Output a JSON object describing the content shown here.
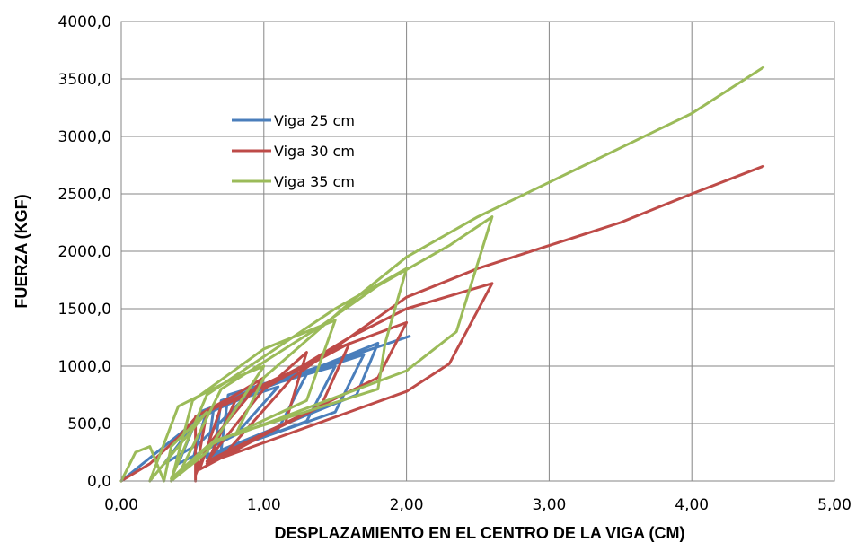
{
  "chart_data": {
    "type": "line",
    "title": "",
    "xlabel": "DESPLAZAMIENTO EN EL CENTRO DE LA VIGA (CM)",
    "ylabel": "FUERZA (KGF)",
    "xlim": [
      0,
      5
    ],
    "ylim": [
      0,
      4000
    ],
    "x_ticks": [
      "0,00",
      "1,00",
      "2,00",
      "3,00",
      "4,00",
      "5,00"
    ],
    "y_ticks": [
      "0,0",
      "500,0",
      "1000,0",
      "1500,0",
      "2000,0",
      "2500,0",
      "3000,0",
      "3500,0",
      "4000,0"
    ],
    "grid": true,
    "legend_position": "upper-left inside plot",
    "series": [
      {
        "name": "Viga 25 cm",
        "color": "#4a7ebb",
        "points": [
          [
            0,
            0
          ],
          [
            0.1,
            100
          ],
          [
            0.3,
            300
          ],
          [
            0.5,
            500
          ],
          [
            0.7,
            650
          ],
          [
            0.9,
            770
          ],
          [
            0.55,
            330
          ],
          [
            0.3,
            150
          ],
          [
            0.55,
            560
          ],
          [
            0.85,
            720
          ],
          [
            1.1,
            820
          ],
          [
            0.8,
            400
          ],
          [
            0.4,
            150
          ],
          [
            0.55,
            600
          ],
          [
            1.0,
            820
          ],
          [
            1.3,
            930
          ],
          [
            1.1,
            450
          ],
          [
            0.5,
            180
          ],
          [
            0.6,
            620
          ],
          [
            1.1,
            860
          ],
          [
            1.5,
            1000
          ],
          [
            1.3,
            520
          ],
          [
            0.6,
            200
          ],
          [
            0.65,
            650
          ],
          [
            1.2,
            900
          ],
          [
            1.7,
            1100
          ],
          [
            1.5,
            600
          ],
          [
            0.65,
            230
          ],
          [
            0.7,
            700
          ],
          [
            1.3,
            950
          ],
          [
            1.8,
            1200
          ],
          [
            1.65,
            750
          ],
          [
            0.7,
            270
          ],
          [
            0.75,
            750
          ],
          [
            1.4,
            1000
          ],
          [
            2.02,
            1260
          ]
        ]
      },
      {
        "name": "Viga 30 cm",
        "color": "#be4b48",
        "points": [
          [
            0,
            0
          ],
          [
            0.2,
            150
          ],
          [
            0.4,
            380
          ],
          [
            0.52,
            550
          ],
          [
            0.52,
            0
          ],
          [
            0.52,
            560
          ],
          [
            0.8,
            750
          ],
          [
            1.0,
            900
          ],
          [
            0.6,
            300
          ],
          [
            0.52,
            50
          ],
          [
            0.6,
            600
          ],
          [
            1.1,
            900
          ],
          [
            1.3,
            1120
          ],
          [
            1.15,
            500
          ],
          [
            0.55,
            100
          ],
          [
            0.7,
            650
          ],
          [
            1.3,
            1000
          ],
          [
            1.6,
            1200
          ],
          [
            1.4,
            650
          ],
          [
            0.6,
            150
          ],
          [
            0.8,
            700
          ],
          [
            1.5,
            1150
          ],
          [
            2.0,
            1380
          ],
          [
            1.8,
            900
          ],
          [
            0.6,
            170
          ],
          [
            1.0,
            800
          ],
          [
            1.6,
            1250
          ],
          [
            2.0,
            1500
          ],
          [
            2.6,
            1720
          ],
          [
            2.3,
            1020
          ],
          [
            2.0,
            780
          ],
          [
            0.7,
            200
          ],
          [
            1.2,
            900
          ],
          [
            2.0,
            1600
          ],
          [
            2.5,
            1850
          ],
          [
            3.0,
            2050
          ],
          [
            3.5,
            2250
          ],
          [
            4.0,
            2500
          ],
          [
            4.5,
            2740
          ]
        ]
      },
      {
        "name": "Viga 35 cm",
        "color": "#9bbb59",
        "points": [
          [
            0,
            0
          ],
          [
            0.1,
            250
          ],
          [
            0.2,
            300
          ],
          [
            0.3,
            0
          ],
          [
            0.35,
            300
          ],
          [
            0.6,
            600
          ],
          [
            0.2,
            0
          ],
          [
            0.4,
            650
          ],
          [
            0.8,
            900
          ],
          [
            1.0,
            1000
          ],
          [
            0.6,
            250
          ],
          [
            0.35,
            0
          ],
          [
            0.5,
            700
          ],
          [
            1.0,
            1150
          ],
          [
            1.5,
            1400
          ],
          [
            1.3,
            700
          ],
          [
            0.6,
            300
          ],
          [
            0.35,
            20
          ],
          [
            0.6,
            750
          ],
          [
            1.2,
            1250
          ],
          [
            1.5,
            1500
          ],
          [
            2.0,
            1850
          ],
          [
            1.85,
            1200
          ],
          [
            1.8,
            800
          ],
          [
            0.65,
            350
          ],
          [
            0.4,
            50
          ],
          [
            0.7,
            800
          ],
          [
            1.4,
            1350
          ],
          [
            1.8,
            1700
          ],
          [
            2.3,
            2050
          ],
          [
            2.6,
            2300
          ],
          [
            2.35,
            1300
          ],
          [
            2.0,
            960
          ],
          [
            0.8,
            400
          ],
          [
            1.0,
            900
          ],
          [
            1.6,
            1550
          ],
          [
            2.0,
            1950
          ],
          [
            2.5,
            2300
          ],
          [
            3.0,
            2600
          ],
          [
            3.5,
            2900
          ],
          [
            4.0,
            3200
          ],
          [
            4.5,
            3600
          ]
        ]
      }
    ]
  }
}
